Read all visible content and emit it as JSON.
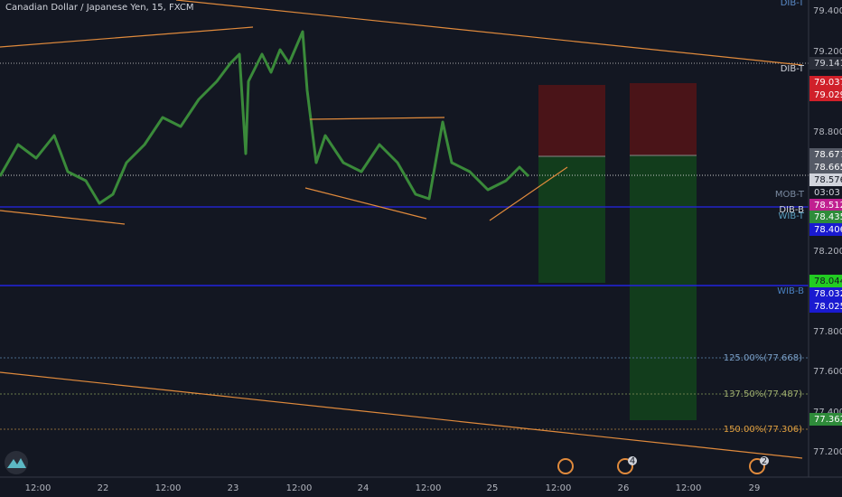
{
  "header": {
    "title": "Canadian Dollar / Japanese Yen, 15, FXCM"
  },
  "price_axis": {
    "labels": [
      "79.400",
      "79.200",
      "78.800",
      "78.200",
      "77.800",
      "77.600",
      "77.400",
      "77.200"
    ]
  },
  "price_tags": [
    "79.141",
    "79.037",
    "79.029",
    "78.677",
    "78.665",
    "78.576",
    "03:03",
    "78.512",
    "78.435",
    "78.406",
    "78.044",
    "78.032",
    "78.025",
    "77.362"
  ],
  "line_labels": [
    "DIB-T",
    "DIB-T",
    "MOB-T",
    "DIB-B",
    "WIB-T",
    "WIB-B"
  ],
  "fib_labels": [
    "125.00%(77.668)",
    "137.50%(77.487)",
    "150.00%(77.306)"
  ],
  "time_axis": {
    "labels": [
      "12:00",
      "22",
      "12:00",
      "23",
      "12:00",
      "24",
      "12:00",
      "25",
      "12:00",
      "26",
      "12:00",
      "29"
    ]
  },
  "event_badges": [
    "4",
    "2"
  ]
}
